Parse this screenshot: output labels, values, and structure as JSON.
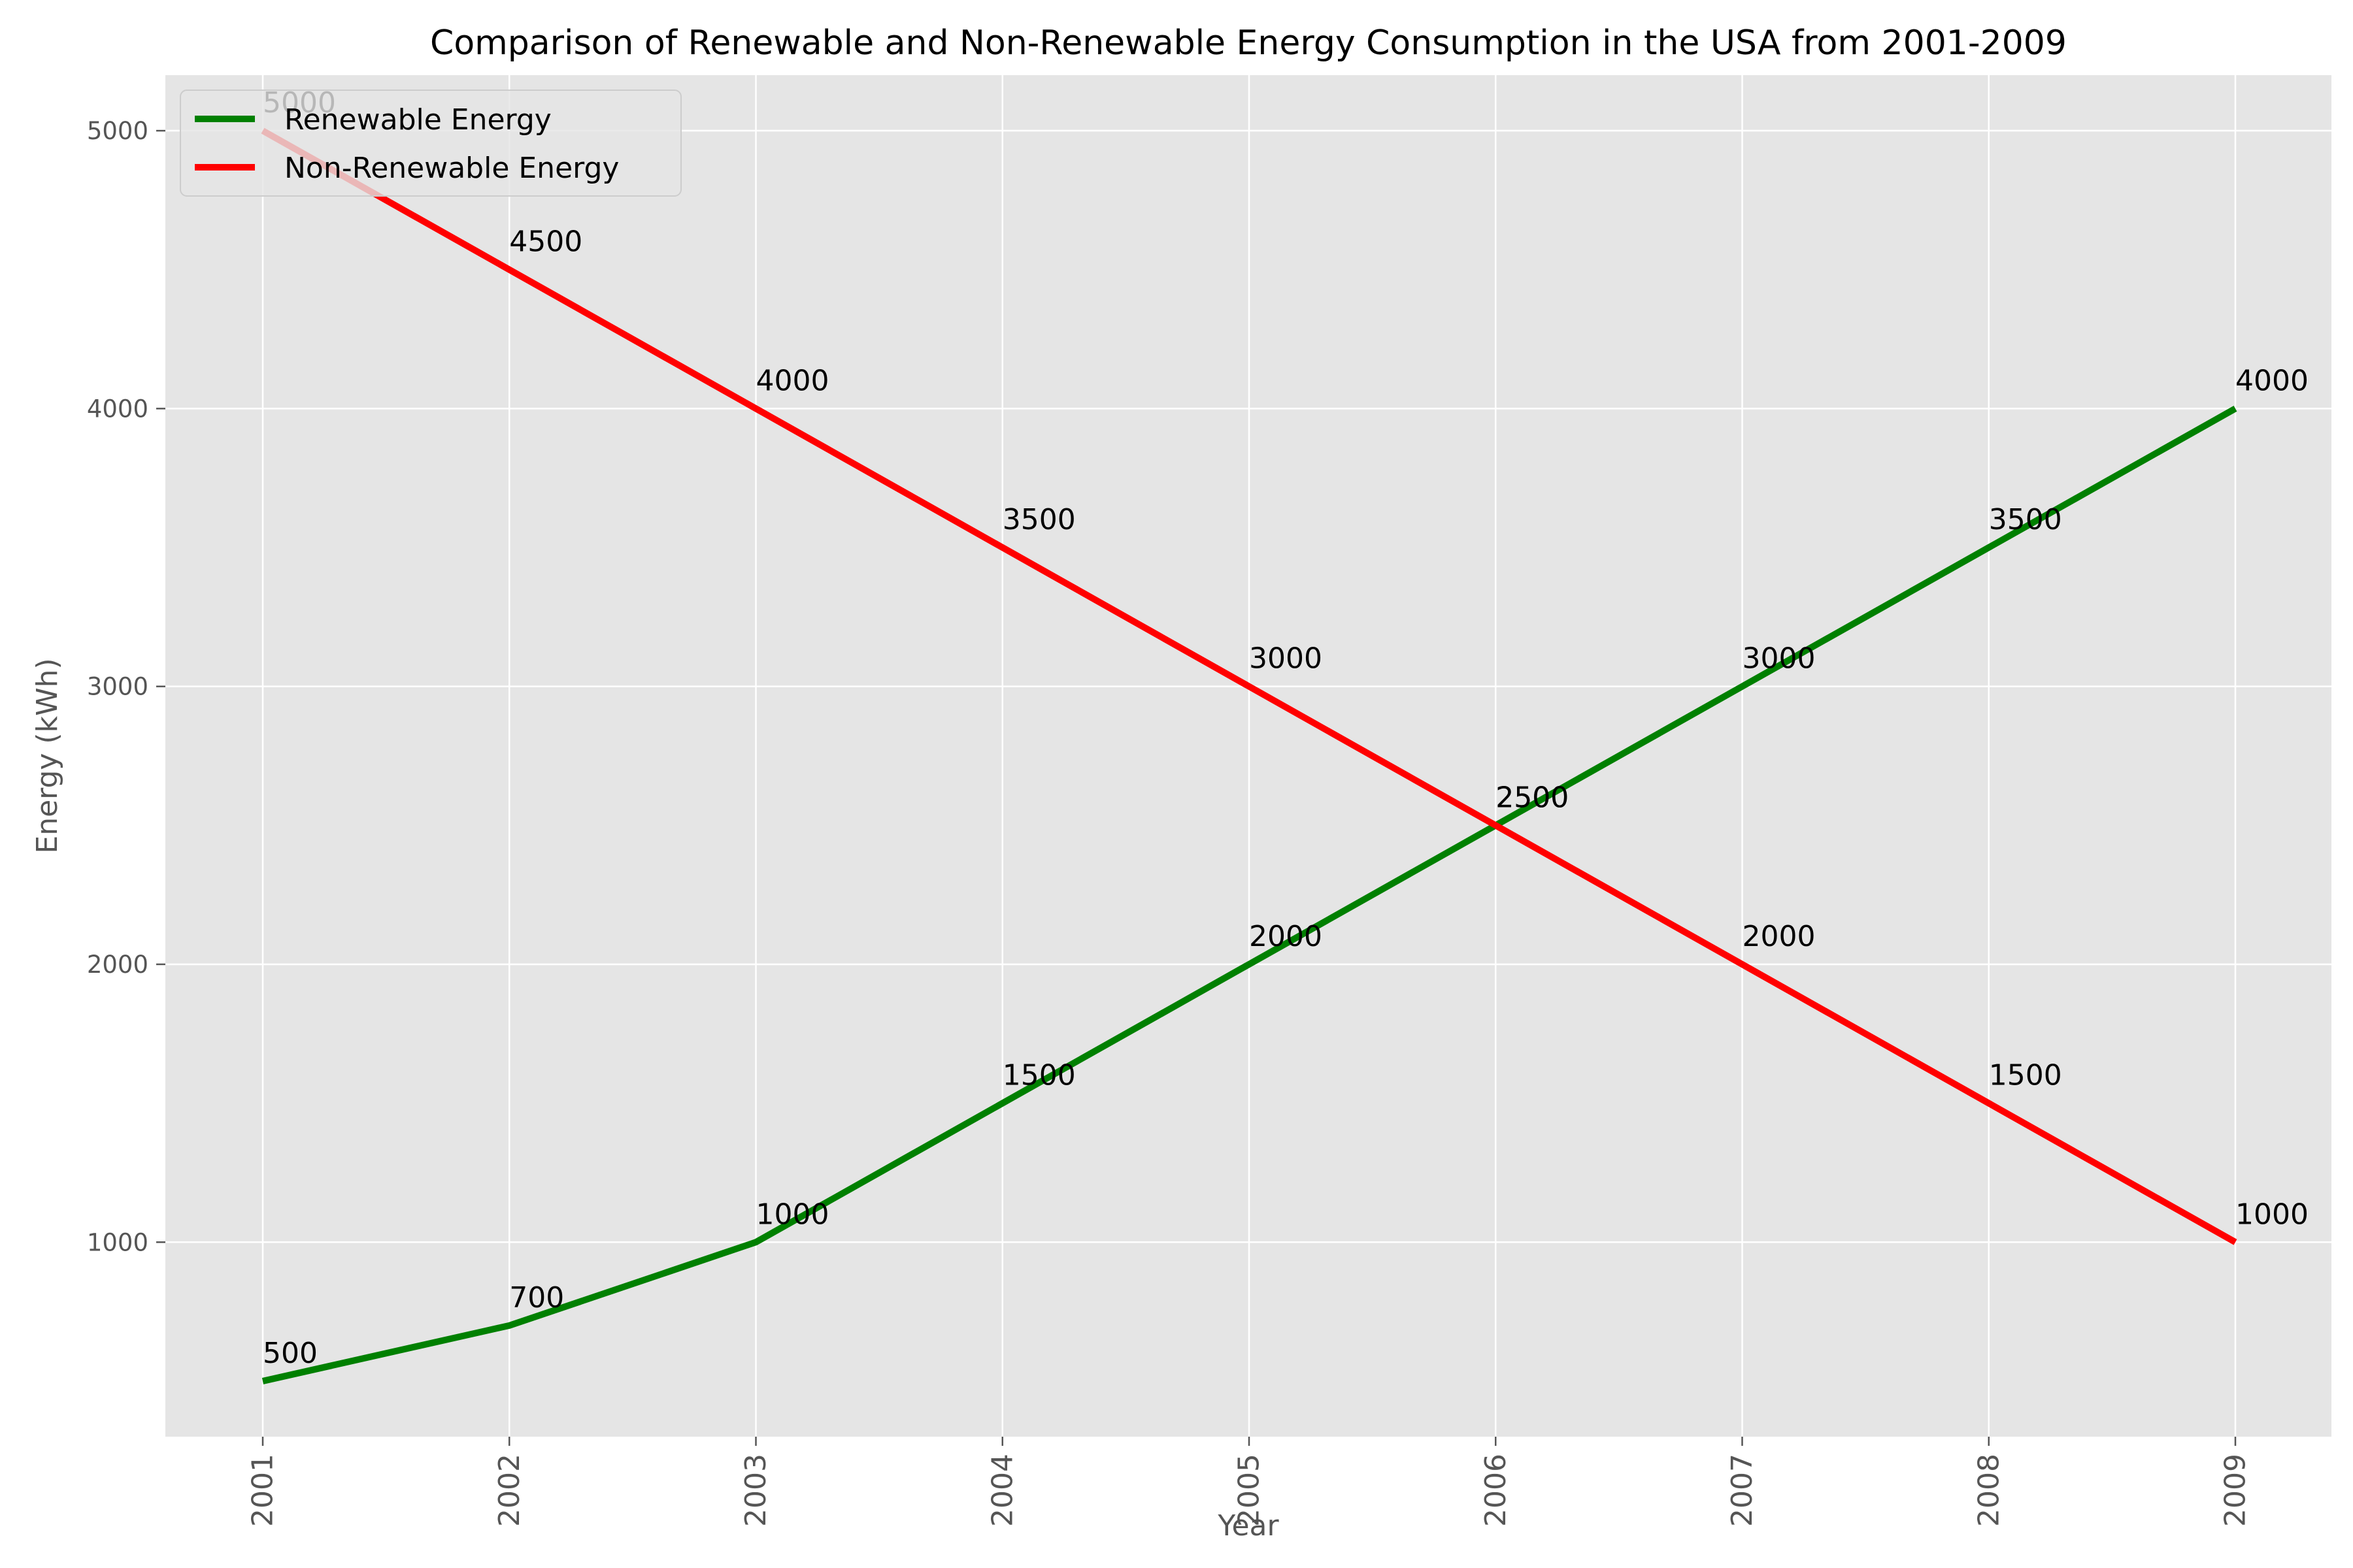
{
  "chart_data": {
    "type": "line",
    "title": "Comparison of Renewable and Non-Renewable Energy Consumption in the USA from 2001-2009",
    "xlabel": "Year",
    "ylabel": "Energy (kWh)",
    "categories": [
      "2001",
      "2002",
      "2003",
      "2004",
      "2005",
      "2006",
      "2007",
      "2008",
      "2009"
    ],
    "series": [
      {
        "name": "Renewable Energy",
        "color": "#008000",
        "values": [
          500,
          700,
          1000,
          1500,
          2000,
          2500,
          3000,
          3500,
          4000
        ]
      },
      {
        "name": "Non-Renewable Energy",
        "color": "#ff0000",
        "values": [
          5000,
          4500,
          4000,
          3500,
          3000,
          2500,
          2000,
          1500,
          1000
        ]
      }
    ],
    "ylim": [
      300,
      5200
    ],
    "yticks": [
      1000,
      2000,
      3000,
      4000,
      5000
    ],
    "grid": true,
    "legend_position": "top-left",
    "background_color": "#e5e5e5",
    "grid_color": "#ffffff"
  }
}
